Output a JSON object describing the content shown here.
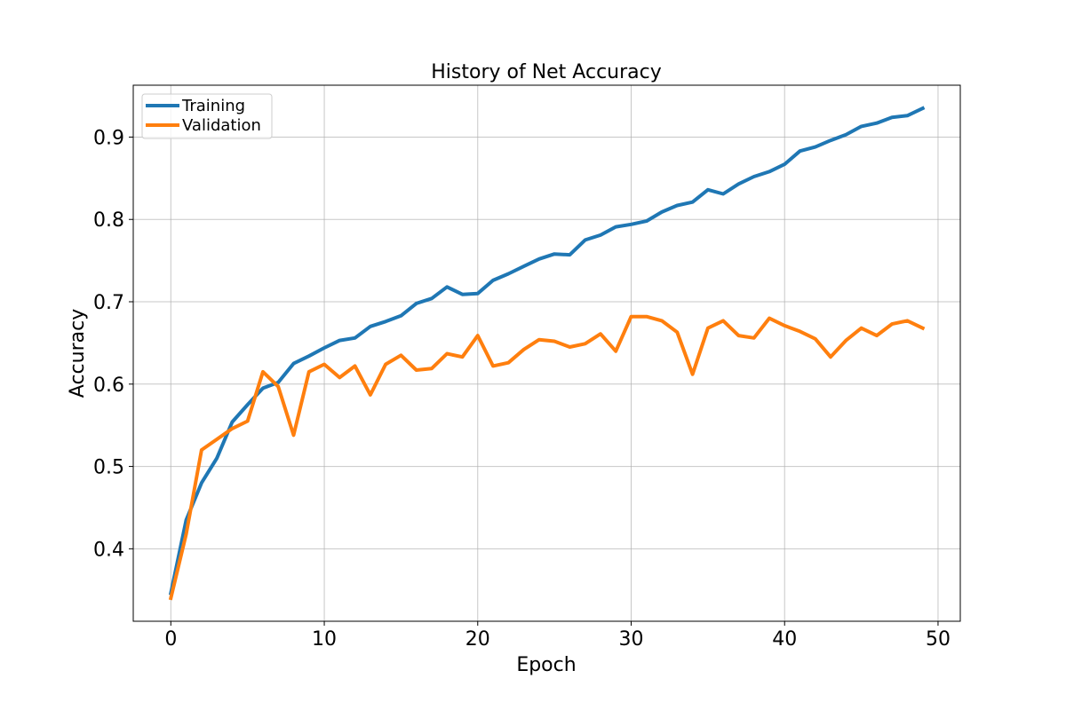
{
  "chart_data": {
    "type": "line",
    "title": "History of Net Accuracy",
    "xlabel": "Epoch",
    "ylabel": "Accuracy",
    "xlim": [
      -2.45,
      51.45
    ],
    "ylim": [
      0.312,
      0.963
    ],
    "xticks": [
      0,
      10,
      20,
      30,
      40,
      50
    ],
    "yticks": [
      0.4,
      0.5,
      0.6,
      0.7,
      0.8,
      0.9
    ],
    "xtick_labels": [
      "0",
      "10",
      "20",
      "30",
      "40",
      "50"
    ],
    "ytick_labels": [
      "0.4",
      "0.5",
      "0.6",
      "0.7",
      "0.8",
      "0.9"
    ],
    "grid": true,
    "legend_position": "top-left",
    "x": [
      0,
      1,
      2,
      3,
      4,
      5,
      6,
      7,
      8,
      9,
      10,
      11,
      12,
      13,
      14,
      15,
      16,
      17,
      18,
      19,
      20,
      21,
      22,
      23,
      24,
      25,
      26,
      27,
      28,
      29,
      30,
      31,
      32,
      33,
      34,
      35,
      36,
      37,
      38,
      39,
      40,
      41,
      42,
      43,
      44,
      45,
      46,
      47,
      48,
      49
    ],
    "series": [
      {
        "name": "Training",
        "color": "#1f77b4",
        "values": [
          0.346,
          0.435,
          0.48,
          0.51,
          0.554,
          0.575,
          0.595,
          0.602,
          0.625,
          0.634,
          0.644,
          0.653,
          0.656,
          0.67,
          0.676,
          0.683,
          0.698,
          0.704,
          0.718,
          0.709,
          0.71,
          0.726,
          0.734,
          0.743,
          0.752,
          0.758,
          0.757,
          0.775,
          0.781,
          0.791,
          0.794,
          0.798,
          0.809,
          0.817,
          0.821,
          0.836,
          0.831,
          0.843,
          0.852,
          0.858,
          0.867,
          0.883,
          0.888,
          0.896,
          0.903,
          0.913,
          0.917,
          0.924,
          0.926,
          0.935
        ]
      },
      {
        "name": "Validation",
        "color": "#ff7f0e",
        "values": [
          0.34,
          0.418,
          0.52,
          0.533,
          0.546,
          0.555,
          0.615,
          0.597,
          0.538,
          0.615,
          0.624,
          0.608,
          0.622,
          0.587,
          0.624,
          0.635,
          0.617,
          0.619,
          0.637,
          0.633,
          0.659,
          0.622,
          0.626,
          0.642,
          0.654,
          0.652,
          0.645,
          0.649,
          0.661,
          0.64,
          0.682,
          0.682,
          0.677,
          0.663,
          0.612,
          0.668,
          0.677,
          0.659,
          0.656,
          0.68,
          0.671,
          0.664,
          0.655,
          0.633,
          0.653,
          0.668,
          0.659,
          0.673,
          0.677,
          0.668
        ]
      }
    ]
  }
}
